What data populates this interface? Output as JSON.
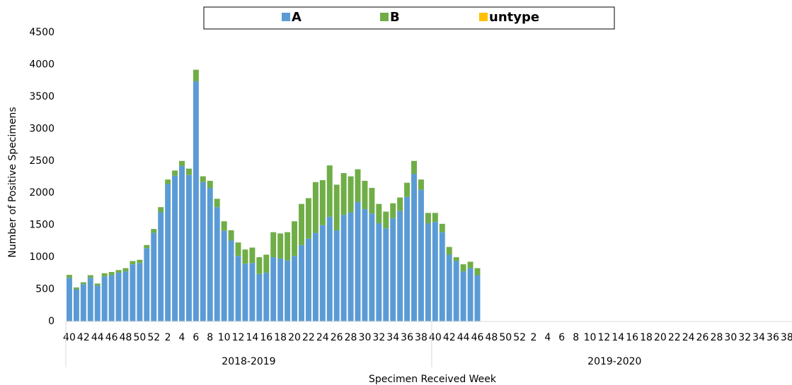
{
  "chart_data": {
    "type": "stacked-bar",
    "x_label": "Specimen Received Week",
    "y_label": "Number of Positive Specimens",
    "category_groups": [
      "2018-2019",
      "2019-2020"
    ],
    "categories": [
      "40",
      null,
      "42",
      null,
      "44",
      null,
      "46",
      null,
      "48",
      null,
      "50",
      null,
      "52",
      null,
      "2",
      null,
      "4",
      null,
      "6",
      null,
      "8",
      null,
      "10",
      null,
      "12",
      null,
      "14",
      null,
      "16",
      null,
      "18",
      null,
      "20",
      null,
      "22",
      null,
      "24",
      null,
      "26",
      null,
      "28",
      null,
      "30",
      null,
      "32",
      null,
      "34",
      null,
      "36",
      null,
      "38",
      null,
      "40",
      null,
      "42",
      null,
      "44",
      null,
      "46",
      null,
      "48",
      null,
      "50",
      null,
      "52",
      null,
      "2",
      null,
      "4",
      null,
      "6",
      null,
      "8",
      null,
      "10",
      null,
      "12",
      null,
      "14",
      null,
      "16",
      null,
      "18",
      null,
      "20",
      null,
      "22",
      null,
      "24",
      null,
      "26",
      null,
      "28",
      null,
      "30",
      null,
      "32",
      null,
      "34",
      null,
      "36",
      null,
      "38",
      null
    ],
    "series": [
      {
        "name": "A",
        "color": "#5b9bd5",
        "values": [
          680,
          500,
          580,
          680,
          560,
          700,
          720,
          760,
          780,
          890,
          910,
          1140,
          1380,
          1700,
          2140,
          2270,
          2420,
          2280,
          3740,
          2170,
          2080,
          1780,
          1410,
          1260,
          1020,
          900,
          910,
          740,
          760,
          1000,
          980,
          950,
          1020,
          1190,
          1290,
          1380,
          1500,
          1630,
          1420,
          1660,
          1700,
          1860,
          1750,
          1680,
          1530,
          1450,
          1610,
          1720,
          1940,
          2300,
          2050,
          1530,
          1550,
          1390,
          1040,
          940,
          780,
          830,
          720,
          null,
          null,
          null,
          null,
          null,
          null,
          null,
          null,
          null,
          null,
          null,
          null,
          null,
          null,
          null,
          null,
          null,
          null,
          null,
          null,
          null,
          null,
          null,
          null,
          null,
          null,
          null,
          null,
          null,
          null,
          null,
          null,
          null,
          null,
          null,
          null,
          null,
          null,
          null,
          null,
          null,
          null,
          null,
          null,
          null
        ]
      },
      {
        "name": "B",
        "color": "#70ad47",
        "values": [
          45,
          30,
          30,
          40,
          30,
          50,
          50,
          40,
          50,
          50,
          50,
          50,
          60,
          80,
          70,
          80,
          80,
          100,
          180,
          90,
          110,
          130,
          150,
          160,
          210,
          220,
          240,
          260,
          280,
          390,
          390,
          440,
          540,
          640,
          630,
          790,
          700,
          800,
          710,
          650,
          560,
          510,
          440,
          400,
          300,
          260,
          230,
          210,
          220,
          200,
          160,
          160,
          140,
          130,
          120,
          60,
          110,
          100,
          110,
          null,
          null,
          null,
          null,
          null,
          null,
          null,
          null,
          null,
          null,
          null,
          null,
          null,
          null,
          null,
          null,
          null,
          null,
          null,
          null,
          null,
          null,
          null,
          null,
          null,
          null,
          null,
          null,
          null,
          null,
          null,
          null,
          null,
          null,
          null,
          null,
          null,
          null,
          null,
          null,
          null,
          null,
          null,
          null,
          null
        ]
      },
      {
        "name": "untype",
        "color": "#ffc000",
        "values": [
          0,
          0,
          0,
          0,
          0,
          0,
          0,
          0,
          0,
          0,
          0,
          0,
          0,
          0,
          0,
          0,
          0,
          0,
          0,
          0,
          0,
          0,
          0,
          0,
          0,
          0,
          0,
          0,
          0,
          0,
          0,
          0,
          0,
          0,
          0,
          0,
          0,
          0,
          0,
          0,
          0,
          0,
          0,
          0,
          0,
          0,
          0,
          0,
          0,
          0,
          0,
          0,
          0,
          0,
          0,
          0,
          0,
          0,
          0,
          null,
          null,
          null,
          null,
          null,
          null,
          null,
          null,
          null,
          null,
          null,
          null,
          null,
          null,
          null,
          null,
          null,
          null,
          null,
          null,
          null,
          null,
          null,
          null,
          null,
          null,
          null,
          null,
          null,
          null,
          null,
          null,
          null,
          null,
          null,
          null,
          null,
          null,
          null,
          null,
          null,
          null,
          null,
          null,
          null
        ]
      }
    ],
    "ylim": [
      0,
      4500
    ],
    "yticks": [
      0,
      500,
      1000,
      1500,
      2000,
      2500,
      3000,
      3500,
      4000,
      4500
    ],
    "legend": "top"
  }
}
